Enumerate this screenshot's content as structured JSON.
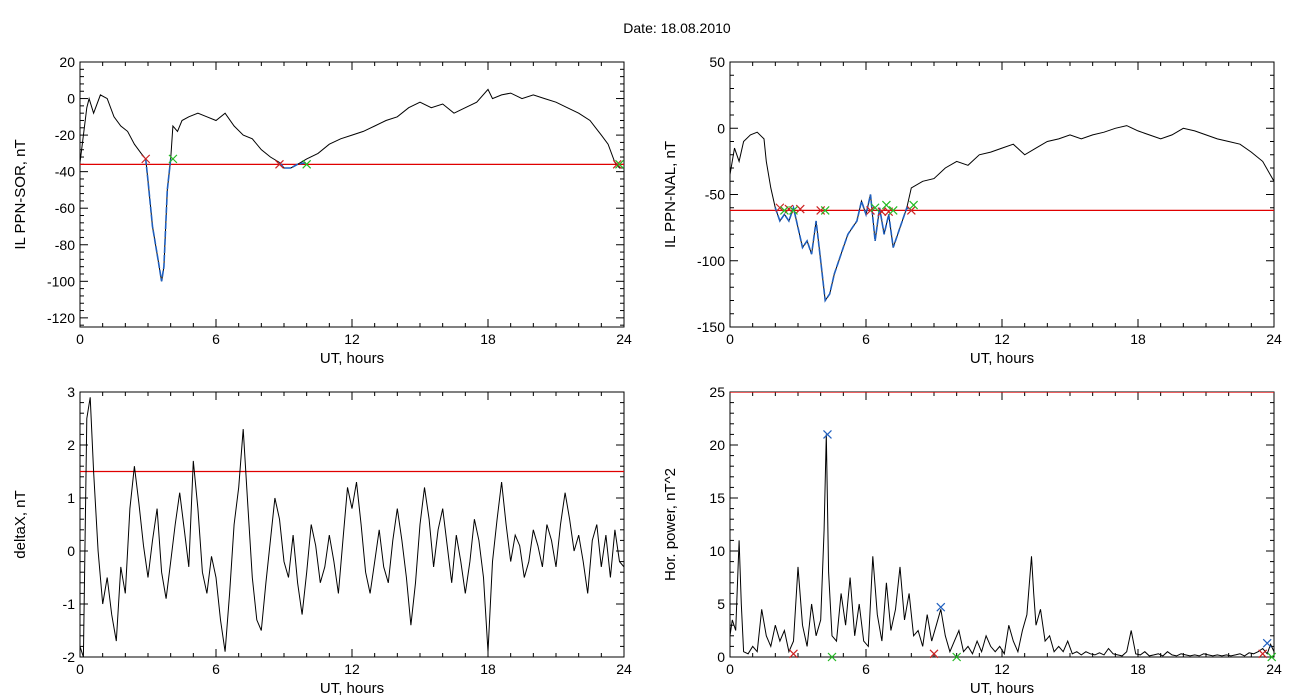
{
  "date_label": "Date:  18.08.2010",
  "chart_data": [
    {
      "id": "ppn-sor",
      "type": "line",
      "xlabel": "UT, hours",
      "ylabel": "IL PPN-SOR, nT",
      "xlim": [
        0,
        24
      ],
      "ylim": [
        -125,
        20
      ],
      "xticks": [
        0,
        6,
        12,
        18,
        24
      ],
      "yticks": [
        20,
        0,
        -20,
        -40,
        -60,
        -80,
        -100,
        -120
      ],
      "threshold": -36,
      "colors": {
        "main": "#000000",
        "event": "#1f5fbf",
        "threshold": "#e00000",
        "start_marker": "#cc2222",
        "end_marker": "#22bb22"
      },
      "series": [
        {
          "x": [
            0,
            0.1,
            0.3,
            0.4,
            0.6,
            0.9,
            1.2,
            1.5,
            1.8,
            2.1,
            2.4,
            2.7,
            2.9,
            3.0,
            3.2,
            3.4,
            3.6,
            3.7,
            3.85,
            4.0,
            4.1,
            4.3,
            4.5,
            4.8,
            5.2,
            5.6,
            6.0,
            6.4,
            6.8,
            7.2,
            7.6,
            8.0,
            8.4,
            8.8,
            9.0,
            9.3,
            9.6,
            10.0,
            10.5,
            11.0,
            11.5,
            12.0,
            12.5,
            13.0,
            13.5,
            14.0,
            14.5,
            15.0,
            15.5,
            16.0,
            16.5,
            17.0,
            17.5,
            18.0,
            18.2,
            18.6,
            19.0,
            19.5,
            20.0,
            20.5,
            21.0,
            21.5,
            22.0,
            22.5,
            23.0,
            23.3,
            23.6,
            23.8,
            24.0
          ],
          "y": [
            -35,
            -25,
            -5,
            0,
            -8,
            2,
            0,
            -10,
            -15,
            -18,
            -25,
            -30,
            -33,
            -45,
            -70,
            -85,
            -100,
            -92,
            -50,
            -33,
            -15,
            -18,
            -12,
            -10,
            -8,
            -10,
            -12,
            -8,
            -15,
            -20,
            -22,
            -28,
            -32,
            -35,
            -38,
            -38,
            -36,
            -33,
            -30,
            -25,
            -22,
            -20,
            -18,
            -15,
            -12,
            -10,
            -5,
            -2,
            -5,
            -3,
            -8,
            -5,
            -2,
            5,
            0,
            2,
            3,
            0,
            2,
            0,
            -2,
            -5,
            -8,
            -12,
            -20,
            -25,
            -35,
            -38,
            -38
          ]
        },
        {
          "x": [
            2.9,
            3.0,
            3.2,
            3.4,
            3.6,
            3.7,
            3.85,
            4.0
          ],
          "y": [
            -33,
            -45,
            -70,
            -85,
            -100,
            -92,
            -50,
            -33
          ]
        },
        {
          "x": [
            8.8,
            9.0,
            9.3,
            9.6,
            10.0
          ],
          "y": [
            -35,
            -38,
            -38,
            -36,
            -35
          ]
        }
      ],
      "start_markers": {
        "x": [
          2.9,
          8.8,
          23.7
        ],
        "y": [
          -33,
          -36,
          -36
        ]
      },
      "end_markers": {
        "x": [
          4.1,
          10.0,
          23.8
        ],
        "y": [
          -33,
          -36,
          -36
        ]
      }
    },
    {
      "id": "ppn-nal",
      "type": "line",
      "xlabel": "UT, hours",
      "ylabel": "IL PPN-NAL, nT",
      "xlim": [
        0,
        24
      ],
      "ylim": [
        -150,
        50
      ],
      "xticks": [
        0,
        6,
        12,
        18,
        24
      ],
      "yticks": [
        50,
        0,
        -50,
        -100,
        -150
      ],
      "threshold": -62,
      "colors": {
        "main": "#000000",
        "event": "#1f5fbf",
        "threshold": "#e00000",
        "start_marker": "#cc2222",
        "end_marker": "#22bb22"
      },
      "series": [
        {
          "x": [
            0,
            0.2,
            0.4,
            0.6,
            0.9,
            1.2,
            1.5,
            1.6,
            1.8,
            2.0,
            2.2,
            2.4,
            2.6,
            2.8,
            3.0,
            3.2,
            3.4,
            3.6,
            3.8,
            4.0,
            4.2,
            4.4,
            4.6,
            4.8,
            5.0,
            5.2,
            5.4,
            5.6,
            5.8,
            6.0,
            6.2,
            6.4,
            6.6,
            6.8,
            7.0,
            7.2,
            7.5,
            7.8,
            8.0,
            8.5,
            9.0,
            9.5,
            10.0,
            10.5,
            11.0,
            11.5,
            12.0,
            12.5,
            13.0,
            13.5,
            14.0,
            14.5,
            15.0,
            15.5,
            16.0,
            16.5,
            17.0,
            17.5,
            18.0,
            18.5,
            19.0,
            19.5,
            20.0,
            20.5,
            21.0,
            21.5,
            22.0,
            22.5,
            23.0,
            23.5,
            24.0
          ],
          "y": [
            -35,
            -15,
            -25,
            -10,
            -5,
            -3,
            -8,
            -25,
            -45,
            -60,
            -70,
            -65,
            -70,
            -60,
            -75,
            -90,
            -85,
            -95,
            -70,
            -100,
            -130,
            -125,
            -110,
            -100,
            -90,
            -80,
            -75,
            -70,
            -55,
            -65,
            -50,
            -85,
            -60,
            -80,
            -65,
            -90,
            -75,
            -60,
            -45,
            -40,
            -38,
            -30,
            -25,
            -28,
            -20,
            -18,
            -15,
            -12,
            -20,
            -15,
            -10,
            -8,
            -5,
            -8,
            -5,
            -3,
            0,
            2,
            -2,
            -5,
            -8,
            -5,
            0,
            -2,
            -5,
            -8,
            -10,
            -12,
            -18,
            -25,
            -40
          ]
        },
        {
          "x": [
            2.0,
            2.2,
            2.4,
            2.6,
            2.8,
            3.0,
            3.2,
            3.4,
            3.6,
            3.8,
            4.0,
            4.2,
            4.4,
            4.6,
            4.8,
            5.0,
            5.2,
            5.4,
            5.6,
            5.8,
            6.0,
            6.2,
            6.4,
            6.6,
            6.8,
            7.0,
            7.2,
            7.5,
            7.8,
            8.0
          ],
          "y": [
            -60,
            -70,
            -65,
            -70,
            -60,
            -75,
            -90,
            -85,
            -95,
            -70,
            -100,
            -130,
            -125,
            -110,
            -100,
            -90,
            -80,
            -75,
            -70,
            -55,
            -65,
            -50,
            -85,
            -60,
            -80,
            -65,
            -90,
            -75,
            -60,
            -62
          ]
        }
      ],
      "start_markers": {
        "x": [
          2.2,
          2.6,
          3.1,
          4.0,
          6.2,
          6.7,
          7.0,
          8.0
        ],
        "y": [
          -60,
          -61,
          -61,
          -62,
          -62,
          -63,
          -63,
          -62
        ]
      },
      "end_markers": {
        "x": [
          2.4,
          2.8,
          4.2,
          6.4,
          6.9,
          7.2,
          8.1
        ],
        "y": [
          -62,
          -62,
          -62,
          -60,
          -58,
          -62,
          -58
        ]
      }
    },
    {
      "id": "deltax",
      "type": "line",
      "xlabel": "UT, hours",
      "ylabel": "deltaX, nT",
      "xlim": [
        0,
        24
      ],
      "ylim": [
        -2,
        3
      ],
      "xticks": [
        0,
        6,
        12,
        18,
        24
      ],
      "yticks": [
        3,
        2,
        1,
        0,
        -1,
        -2
      ],
      "threshold": 1.5,
      "colors": {
        "main": "#000000",
        "threshold": "#e00000"
      },
      "series": [
        {
          "x": [
            0,
            0.15,
            0.3,
            0.45,
            0.6,
            0.8,
            1.0,
            1.2,
            1.4,
            1.6,
            1.8,
            2.0,
            2.2,
            2.4,
            2.6,
            2.8,
            3.0,
            3.2,
            3.4,
            3.6,
            3.8,
            4.0,
            4.2,
            4.4,
            4.6,
            4.8,
            5.0,
            5.2,
            5.4,
            5.6,
            5.8,
            6.0,
            6.2,
            6.4,
            6.6,
            6.8,
            7.0,
            7.2,
            7.4,
            7.6,
            7.8,
            8.0,
            8.2,
            8.4,
            8.6,
            8.8,
            9.0,
            9.2,
            9.4,
            9.6,
            9.8,
            10.0,
            10.2,
            10.4,
            10.6,
            10.8,
            11.0,
            11.2,
            11.4,
            11.6,
            11.8,
            12.0,
            12.2,
            12.4,
            12.6,
            12.8,
            13.0,
            13.2,
            13.4,
            13.6,
            13.8,
            14.0,
            14.2,
            14.4,
            14.6,
            14.8,
            15.0,
            15.2,
            15.4,
            15.6,
            15.8,
            16.0,
            16.2,
            16.4,
            16.6,
            16.8,
            17.0,
            17.2,
            17.4,
            17.6,
            17.8,
            18.0,
            18.2,
            18.4,
            18.6,
            18.8,
            19.0,
            19.2,
            19.4,
            19.6,
            19.8,
            20.0,
            20.2,
            20.4,
            20.6,
            20.8,
            21.0,
            21.2,
            21.4,
            21.6,
            21.8,
            22.0,
            22.2,
            22.4,
            22.6,
            22.8,
            23.0,
            23.2,
            23.4,
            23.6,
            23.8,
            24.0
          ],
          "y": [
            -1.8,
            -2.0,
            2.5,
            2.9,
            1.5,
            0.0,
            -1.0,
            -0.5,
            -1.2,
            -1.7,
            -0.3,
            -0.8,
            0.8,
            1.6,
            0.9,
            0.1,
            -0.5,
            0.2,
            0.8,
            -0.4,
            -0.9,
            -0.2,
            0.5,
            1.1,
            0.4,
            -0.3,
            1.7,
            0.8,
            -0.4,
            -0.8,
            -0.1,
            -0.5,
            -1.3,
            -1.9,
            -0.8,
            0.5,
            1.2,
            2.3,
            0.9,
            -0.5,
            -1.3,
            -1.5,
            -0.6,
            0.2,
            1.0,
            0.6,
            -0.2,
            -0.5,
            0.3,
            -0.6,
            -1.2,
            -0.4,
            0.5,
            0.1,
            -0.6,
            -0.3,
            0.3,
            -0.2,
            -0.8,
            0.2,
            1.2,
            0.8,
            1.3,
            0.5,
            -0.4,
            -0.8,
            -0.2,
            0.4,
            -0.3,
            -0.6,
            0.2,
            0.8,
            0.2,
            -0.5,
            -1.4,
            -0.6,
            0.5,
            1.2,
            0.6,
            -0.3,
            0.4,
            0.8,
            0.1,
            -0.6,
            0.3,
            -0.2,
            -0.8,
            -0.2,
            0.6,
            0.2,
            -0.5,
            -1.9,
            -0.2,
            0.6,
            1.3,
            0.5,
            -0.2,
            0.3,
            0.1,
            -0.5,
            -0.2,
            0.4,
            0.1,
            -0.3,
            0.5,
            0.2,
            -0.3,
            0.5,
            1.1,
            0.6,
            0.0,
            0.3,
            -0.2,
            -0.8,
            0.2,
            0.5,
            -0.3,
            0.3,
            -0.5,
            0.4,
            -0.2,
            -0.3
          ]
        }
      ]
    },
    {
      "id": "hor-power",
      "type": "line",
      "xlabel": "UT, hours",
      "ylabel": "Hor. power, nT^2",
      "xlim": [
        0,
        24
      ],
      "ylim": [
        0,
        25
      ],
      "xticks": [
        0,
        6,
        12,
        18,
        24
      ],
      "yticks": [
        25,
        20,
        15,
        10,
        5,
        0
      ],
      "threshold": 25,
      "colors": {
        "main": "#000000",
        "threshold": "#e00000",
        "peak_marker": "#1f5fbf",
        "start_marker": "#cc2222",
        "end_marker": "#22bb22"
      },
      "series": [
        {
          "x": [
            0,
            0.1,
            0.25,
            0.4,
            0.5,
            0.6,
            0.8,
            1.0,
            1.2,
            1.4,
            1.6,
            1.8,
            2.0,
            2.2,
            2.4,
            2.6,
            2.8,
            3.0,
            3.2,
            3.4,
            3.6,
            3.8,
            4.0,
            4.15,
            4.25,
            4.35,
            4.5,
            4.7,
            4.9,
            5.1,
            5.3,
            5.5,
            5.7,
            5.9,
            6.1,
            6.3,
            6.5,
            6.7,
            6.9,
            7.1,
            7.3,
            7.5,
            7.7,
            7.9,
            8.1,
            8.3,
            8.5,
            8.7,
            8.9,
            9.1,
            9.3,
            9.5,
            9.7,
            9.9,
            10.1,
            10.3,
            10.5,
            10.7,
            10.9,
            11.1,
            11.3,
            11.5,
            11.7,
            11.9,
            12.1,
            12.3,
            12.5,
            12.7,
            12.9,
            13.1,
            13.3,
            13.4,
            13.5,
            13.7,
            13.9,
            14.1,
            14.3,
            14.5,
            14.7,
            14.9,
            15.1,
            15.3,
            15.5,
            15.7,
            15.9,
            16.1,
            16.3,
            16.5,
            16.7,
            16.9,
            17.1,
            17.3,
            17.5,
            17.7,
            17.9,
            18.1,
            18.3,
            18.5,
            18.7,
            18.9,
            19.1,
            19.3,
            19.5,
            19.7,
            19.9,
            20.1,
            20.3,
            20.5,
            20.7,
            20.9,
            21.1,
            21.3,
            21.5,
            21.7,
            21.9,
            22.1,
            22.3,
            22.5,
            22.7,
            22.9,
            23.1,
            23.3,
            23.5,
            23.7,
            23.85,
            24.0
          ],
          "y": [
            2.0,
            3.5,
            2.5,
            11.0,
            5.0,
            0.5,
            0.3,
            1.0,
            0.5,
            4.5,
            2.0,
            1.0,
            3.0,
            1.5,
            2.5,
            0.5,
            1.5,
            8.5,
            3.0,
            1.0,
            5.0,
            2.0,
            3.5,
            12.0,
            21.0,
            8.0,
            2.0,
            1.5,
            6.0,
            3.0,
            7.5,
            2.0,
            5.0,
            1.5,
            1.0,
            9.5,
            4.0,
            1.5,
            7.0,
            2.5,
            4.5,
            8.5,
            3.5,
            6.0,
            2.0,
            2.5,
            1.0,
            4.0,
            1.5,
            3.0,
            4.5,
            2.0,
            0.5,
            1.5,
            2.5,
            0.5,
            1.0,
            0.3,
            1.5,
            0.5,
            2.0,
            1.0,
            0.5,
            1.0,
            0.3,
            3.0,
            1.5,
            0.5,
            2.5,
            4.0,
            9.5,
            6.0,
            3.0,
            4.5,
            1.5,
            2.0,
            0.5,
            1.0,
            0.5,
            1.5,
            0.3,
            0.5,
            0.2,
            0.5,
            0.3,
            0.2,
            0.4,
            0.2,
            0.8,
            0.3,
            0.2,
            0.1,
            0.5,
            2.5,
            0.3,
            0.2,
            0.5,
            0.1,
            0.2,
            0.3,
            0.1,
            0.5,
            0.2,
            0.1,
            0.3,
            0.2,
            0.1,
            0.2,
            0.1,
            0.3,
            0.2,
            0.1,
            0.2,
            0.1,
            0.2,
            0.1,
            0.2,
            0.3,
            0.1,
            0.4,
            0.3,
            0.5,
            0.8,
            0.3,
            1.2,
            0.5
          ]
        }
      ],
      "peak_markers": {
        "x": [
          4.3,
          9.3,
          23.7
        ],
        "y": [
          21.0,
          4.7,
          1.3
        ]
      },
      "start_markers": {
        "x": [
          2.8,
          9.0,
          23.5
        ],
        "y": [
          0.3,
          0.3,
          0.3
        ]
      },
      "end_markers": {
        "x": [
          4.5,
          10.0,
          23.9
        ],
        "y": [
          0.0,
          0.0,
          0.0
        ]
      }
    }
  ]
}
